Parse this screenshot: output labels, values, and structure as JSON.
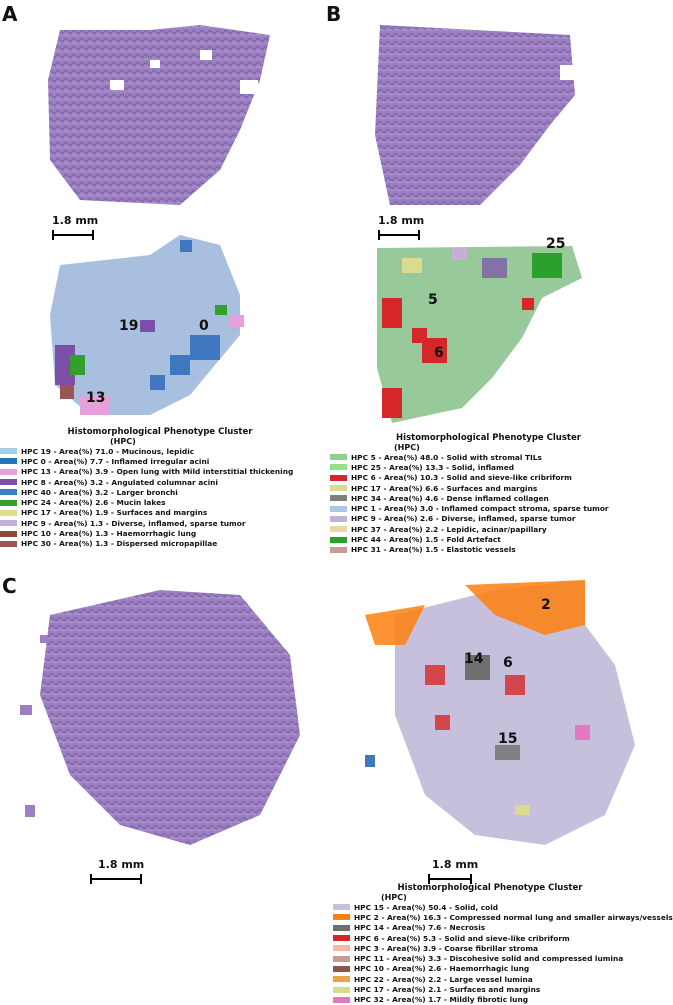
{
  "panels": [
    {
      "letter": "A",
      "scale_label": "1.8 mm",
      "cluster_labels": [
        "19",
        "0",
        "13"
      ],
      "legend": {
        "title": "Histomorphological Phenotype Cluster",
        "subtitle": "(HPC)",
        "items": [
          {
            "label": "HPC 19 - Area(%) 71.0 - Mucinous, lepidic",
            "color": "#a6cee3"
          },
          {
            "label": "HPC  0 - Area(%) 7.7 - Inflamed irregular acini",
            "color": "#1f78b4"
          },
          {
            "label": "HPC 13 - Area(%) 3.9 - Open lung with Mild interstitial thickening",
            "color": "#e7a1d8"
          },
          {
            "label": "HPC  8 - Area(%) 3.2 - Angulated columnar acini",
            "color": "#7b4fa8"
          },
          {
            "label": "HPC 40 - Area(%) 3.2 - Larger bronchi",
            "color": "#3a7fc1"
          },
          {
            "label": "HPC 24 - Area(%) 2.6 - Mucin lakes",
            "color": "#33a02c"
          },
          {
            "label": "HPC 17 - Area(%) 1.9 - Surfaces and margins",
            "color": "#dede8a"
          },
          {
            "label": "HPC  9 - Area(%) 1.3 - Diverse, inflamed, sparse tumor",
            "color": "#c5b0d5"
          },
          {
            "label": "HPC 10 - Area(%) 1.3 - Haemorrhagic lung",
            "color": "#8c4a3a"
          },
          {
            "label": "HPC 30 - Area(%) 1.3 - Dispersed micropapillae",
            "color": "#9c5555"
          }
        ]
      }
    },
    {
      "letter": "B",
      "scale_label": "1.8 mm",
      "cluster_labels": [
        "25",
        "5",
        "6"
      ],
      "legend": {
        "title": "Histomorphological Phenotype Cluster",
        "subtitle": "(HPC)",
        "items": [
          {
            "label": "HPC  5 - Area(%) 48.0 - Solid with stromal TILs",
            "color": "#8fd18a"
          },
          {
            "label": "HPC 25 - Area(%) 13.3 - Solid, inflamed",
            "color": "#98df8a"
          },
          {
            "label": "HPC  6 - Area(%) 10.3 - Solid and sieve-like cribriform",
            "color": "#d62728"
          },
          {
            "label": "HPC 17 - Area(%) 6.6 - Surfaces and margins",
            "color": "#dbdb8d"
          },
          {
            "label": "HPC 34 - Area(%) 4.6 - Dense inflamed collagen",
            "color": "#7f7f7f"
          },
          {
            "label": "HPC  1 - Area(%) 3.0 - Inflamed compact stroma, sparse tumor",
            "color": "#aec7e8"
          },
          {
            "label": "HPC  9 - Area(%) 2.6 - Diverse, inflamed, sparse tumor",
            "color": "#c5b0d5"
          },
          {
            "label": "HPC 37 - Area(%) 2.2 - Lepidic, acinar/papillary",
            "color": "#e8d8a0"
          },
          {
            "label": "HPC 44 - Area(%) 1.5 - Fold Artefact",
            "color": "#2ca02c"
          },
          {
            "label": "HPC 31 - Area(%) 1.5 - Elastotic vessels",
            "color": "#c49c94"
          }
        ]
      }
    },
    {
      "letter": "C",
      "scale_label_left": "1.8 mm",
      "scale_label_right": "1.8 mm",
      "cluster_labels": [
        "2",
        "14",
        "6",
        "15"
      ],
      "legend": {
        "title": "Histomorphological Phenotype Cluster",
        "subtitle": "(HPC)",
        "items": [
          {
            "label": "HPC 15 - Area(%) 50.4 - Solid, cold",
            "color": "#c7c0dd"
          },
          {
            "label": "HPC  2 - Area(%) 16.3 - Compressed normal lung and smaller airways/vessels",
            "color": "#ff7f0e"
          },
          {
            "label": "HPC 14 - Area(%) 7.6 - Necrosis",
            "color": "#6f6f6f"
          },
          {
            "label": "HPC  6 - Area(%) 5.3 - Solid and sieve-like cribriform",
            "color": "#d62728"
          },
          {
            "label": "HPC  3 - Area(%) 3.9 - Coarse fibrillar stroma",
            "color": "#f7b6a2"
          },
          {
            "label": "HPC 11 - Area(%) 3.3 - Discohesive solid and compressed lumina",
            "color": "#c49c94"
          },
          {
            "label": "HPC 10 - Area(%) 2.6 - Haemorrhagic lung",
            "color": "#8c564b"
          },
          {
            "label": "HPC 22 - Area(%) 2.2 - Large vessel lumina",
            "color": "#f0a04b"
          },
          {
            "label": "HPC 17 - Area(%) 2.1 - Surfaces and margins",
            "color": "#dbdb8d"
          },
          {
            "label": "HPC 32 - Area(%) 1.7 - Mildly fibrotic lung",
            "color": "#e377c2"
          }
        ]
      }
    }
  ]
}
